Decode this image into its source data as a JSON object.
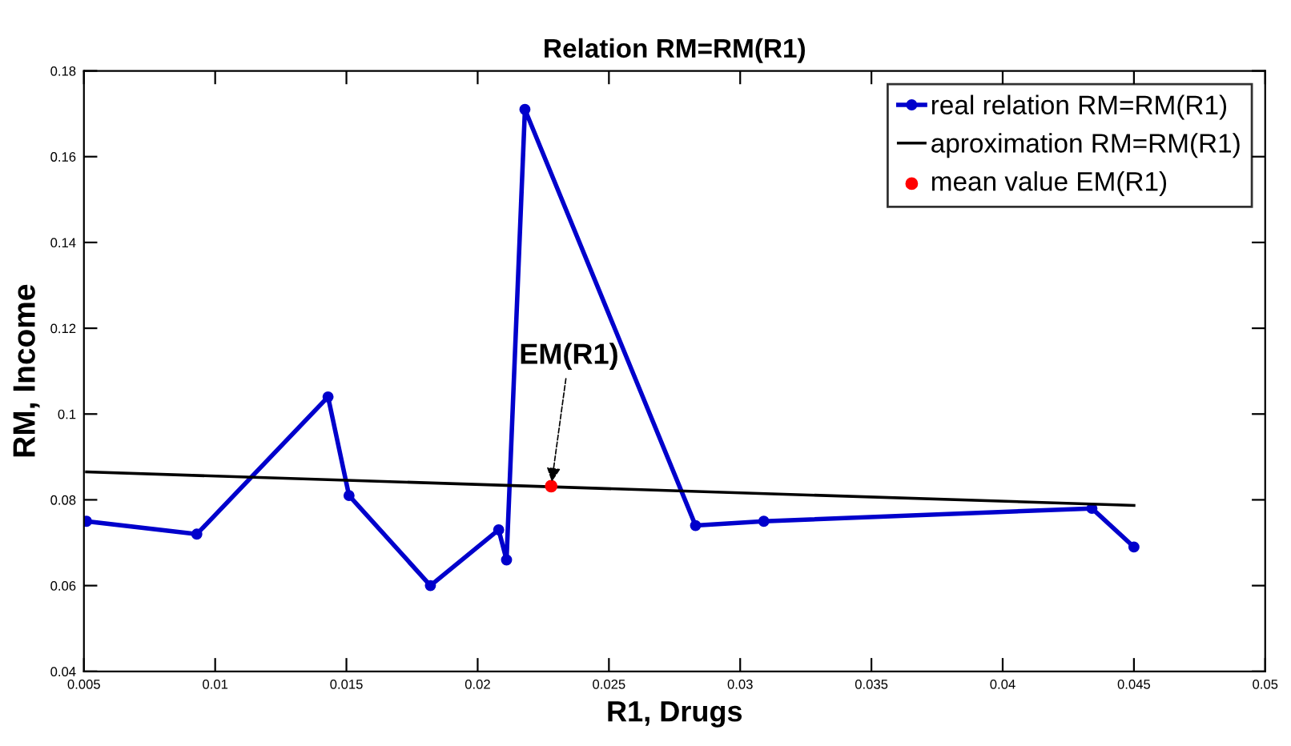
{
  "chart_data": {
    "type": "line",
    "title": "Relation RM=RM(R1)",
    "xlabel": "R1, Drugs",
    "ylabel": "RM, Income",
    "series": [
      {
        "name": "real relation RM=RM(R1)",
        "color": "#0000cc",
        "marker": "circle",
        "x": [
          0.0051,
          0.0093,
          0.0143,
          0.0151,
          0.0182,
          0.0208,
          0.0211,
          0.0218,
          0.0283,
          0.0309,
          0.0434,
          0.045
        ],
        "values": [
          0.075,
          0.072,
          0.104,
          0.081,
          0.06,
          0.073,
          0.066,
          0.171,
          0.074,
          0.075,
          0.078,
          0.069
        ]
      },
      {
        "name": "aproximation RM=RM(R1)",
        "color": "#000000",
        "marker": "none",
        "x": [
          0.0051,
          0.045
        ],
        "values": [
          0.0865,
          0.0787
        ]
      },
      {
        "name": "mean value EM(R1)",
        "color": "#ff0000",
        "type": "scatter",
        "marker": "circle",
        "x": [
          0.0228
        ],
        "values": [
          0.0832
        ]
      }
    ],
    "annotations": [
      {
        "text": "EM(R1)",
        "x": 0.0228,
        "y": 0.0832
      }
    ],
    "xlim": [
      0.005,
      0.05
    ],
    "xticks": [
      0.005,
      0.01,
      0.015,
      0.02,
      0.025,
      0.03,
      0.035,
      0.04,
      0.045,
      0.05
    ],
    "ylim": [
      0.04,
      0.18
    ],
    "yticks": [
      0.04,
      0.06,
      0.08,
      0.1,
      0.12,
      0.14,
      0.16,
      0.18
    ],
    "grid": false,
    "legend": "top right"
  }
}
